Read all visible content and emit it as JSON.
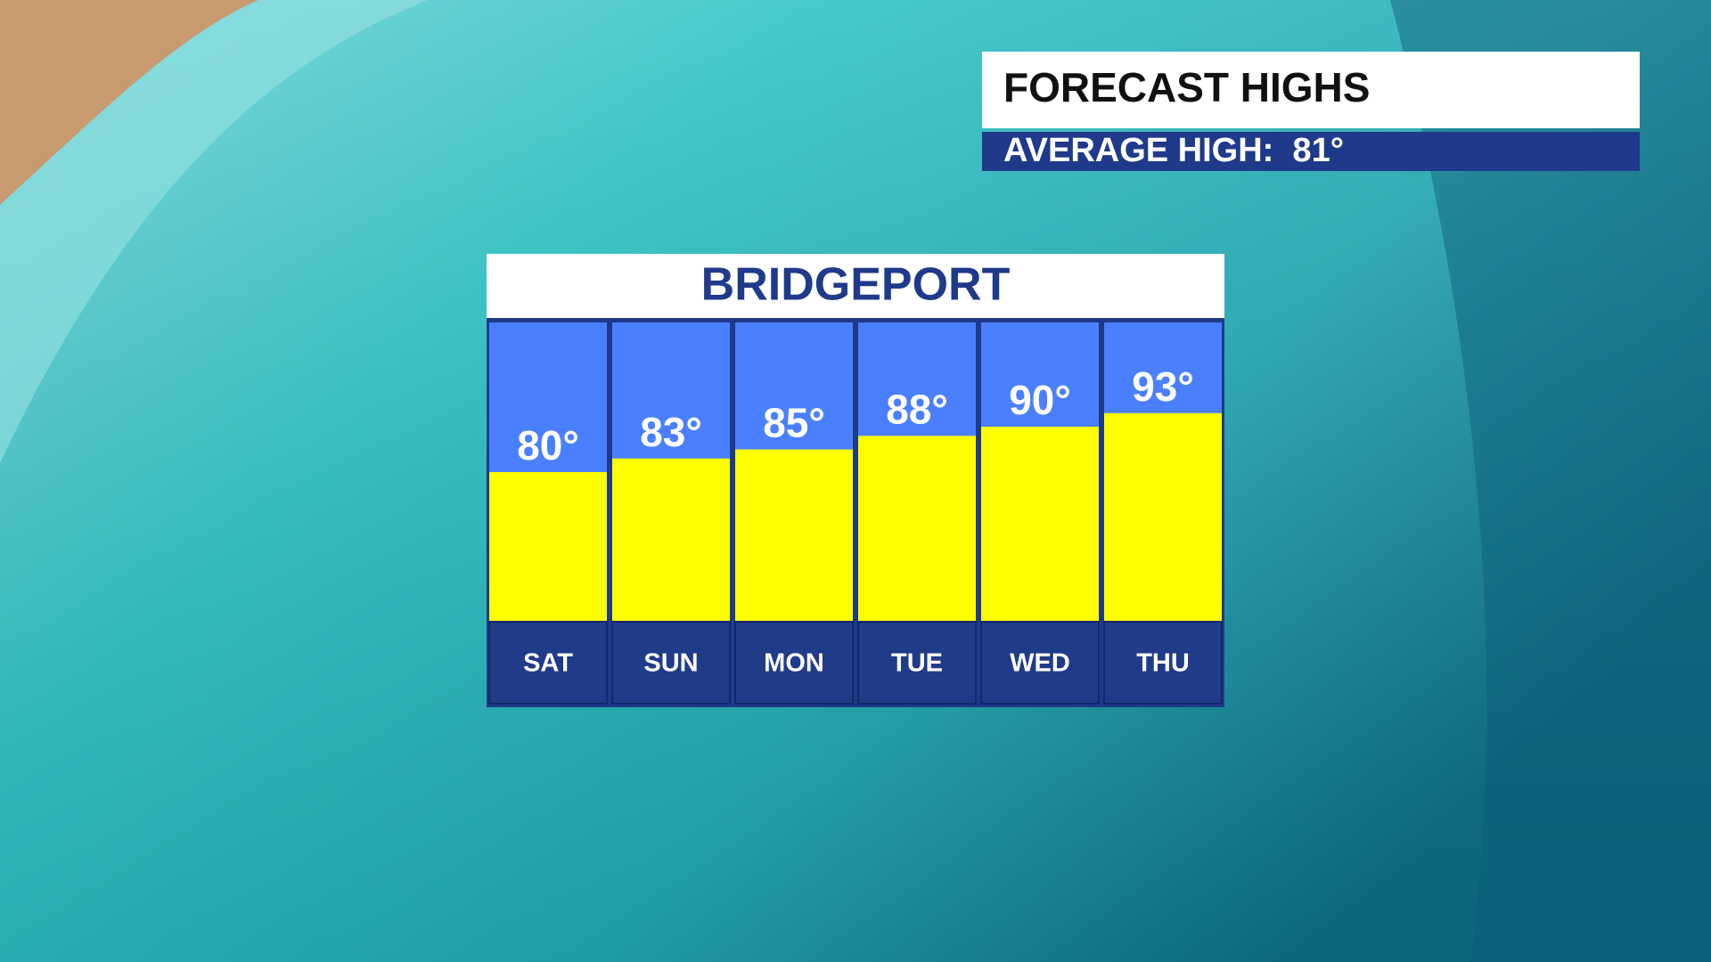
{
  "chart_data": {
    "type": "bar",
    "title": "FORECAST HIGHS",
    "subtitle": "AVERAGE HIGH:  81°",
    "location": "BRIDGEPORT",
    "categories": [
      "SAT",
      "SUN",
      "MON",
      "TUE",
      "WED",
      "THU"
    ],
    "values": [
      80,
      83,
      85,
      88,
      90,
      93
    ],
    "value_labels": [
      "80°",
      "83°",
      "85°",
      "88°",
      "90°",
      "93°"
    ],
    "color": "#ffff00",
    "ylim": [
      47,
      113
    ]
  }
}
